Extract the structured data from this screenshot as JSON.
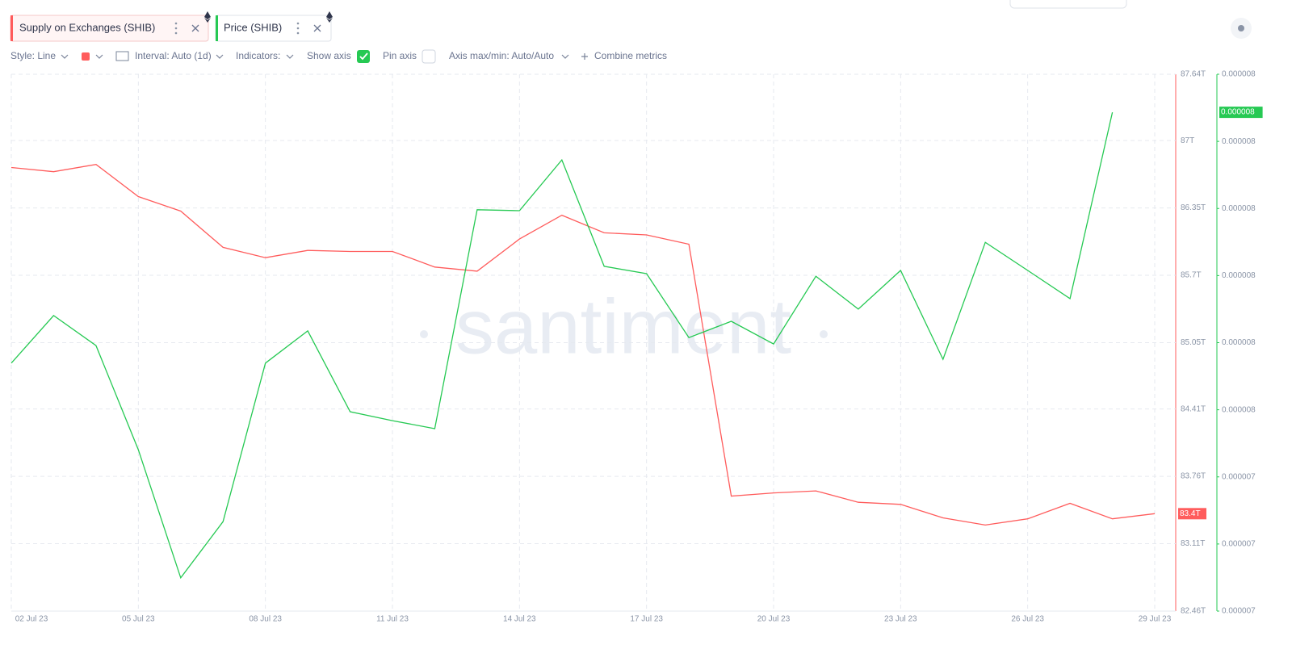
{
  "ui": {
    "tabs": [
      "Supply on Exchanges (SHIB)",
      "Price (SHIB)"
    ],
    "toolbar": {
      "style": "Style: Line",
      "interval": "Interval: Auto (1d)",
      "indicators": "Indicators:",
      "show_axis": "Show axis",
      "pin_axis": "Pin axis",
      "axis_range": "Axis max/min: Auto/Auto",
      "combine": "Combine metrics"
    },
    "watermark": "santiment"
  },
  "chart_data": {
    "type": "line",
    "grid": true,
    "categories": [
      "02 Jul 23",
      null,
      null,
      "05 Jul 23",
      null,
      null,
      "08 Jul 23",
      null,
      null,
      "11 Jul 23",
      null,
      null,
      "14 Jul 23",
      null,
      null,
      "17 Jul 23",
      null,
      null,
      "20 Jul 23",
      null,
      null,
      "23 Jul 23",
      null,
      null,
      "26 Jul 23",
      null,
      null,
      "29 Jul 23"
    ],
    "ylim": [
      82.46,
      87.64
    ],
    "yticks": [
      {
        "value": 82.46,
        "label": "82.46T"
      },
      {
        "value": 83.11,
        "label": "83.11T"
      },
      {
        "value": 83.76,
        "label": "83.76T"
      },
      {
        "value": 84.41,
        "label": "84.41T"
      },
      {
        "value": 85.05,
        "label": "85.05T"
      },
      {
        "value": 85.7,
        "label": "85.7T"
      },
      {
        "value": 86.35,
        "label": "86.35T"
      },
      {
        "value": 87,
        "label": "87T"
      },
      {
        "value": 87.64,
        "label": "87.64T"
      }
    ],
    "y2lim": [
      6.9e-06,
      8.58e-06
    ],
    "y2ticks": [
      {
        "value": 6.9e-06,
        "label": "0.000007"
      },
      {
        "value": 7.11e-06,
        "label": "0.000007"
      },
      {
        "value": 7.32e-06,
        "label": "0.000007"
      },
      {
        "value": 7.53e-06,
        "label": "0.000008"
      },
      {
        "value": 7.74e-06,
        "label": "0.000008"
      },
      {
        "value": 7.95e-06,
        "label": "0.000008"
      },
      {
        "value": 8.16e-06,
        "label": "0.000008"
      },
      {
        "value": 8.37e-06,
        "label": "0.000008"
      },
      {
        "value": 8.58e-06,
        "label": "0.000008"
      }
    ],
    "series": [
      {
        "name": "Supply on Exchanges (SHIB)",
        "color": "#ff5c5c",
        "axis": "y",
        "values": [
          86.74,
          86.7,
          86.77,
          86.46,
          86.32,
          85.97,
          85.87,
          85.94,
          85.93,
          85.93,
          85.78,
          85.74,
          86.05,
          86.28,
          86.11,
          86.09,
          86.0,
          83.57,
          83.6,
          83.62,
          83.51,
          83.49,
          83.36,
          83.29,
          83.35,
          83.5,
          83.35,
          83.4
        ],
        "value_labels": [
          null,
          null,
          null,
          null,
          null,
          null,
          null,
          null,
          null,
          null,
          null,
          null,
          null,
          null,
          null,
          null,
          null,
          null,
          null,
          null,
          null,
          null,
          null,
          null,
          null,
          null,
          null,
          "83.4T"
        ]
      },
      {
        "name": "Price (SHIB)",
        "color": "#26c953",
        "axis": "y2",
        "values": [
          7.676e-06,
          7.825e-06,
          7.731e-06,
          7.405e-06,
          7.004e-06,
          7.18e-06,
          7.676e-06,
          7.777e-06,
          7.524e-06,
          7.496e-06,
          7.471e-06,
          8.156e-06,
          8.153e-06,
          8.312e-06,
          7.979e-06,
          7.956e-06,
          7.756e-06,
          7.807e-06,
          7.736e-06,
          7.948e-06,
          7.845e-06,
          7.966e-06,
          7.688e-06,
          8.054e-06,
          7.966e-06,
          7.878e-06,
          8.461e-06,
          null
        ],
        "value_labels": [
          null,
          null,
          null,
          null,
          null,
          null,
          null,
          null,
          null,
          null,
          null,
          null,
          null,
          null,
          null,
          null,
          null,
          null,
          null,
          null,
          null,
          null,
          null,
          null,
          null,
          null,
          "0.000008",
          null
        ]
      }
    ]
  }
}
